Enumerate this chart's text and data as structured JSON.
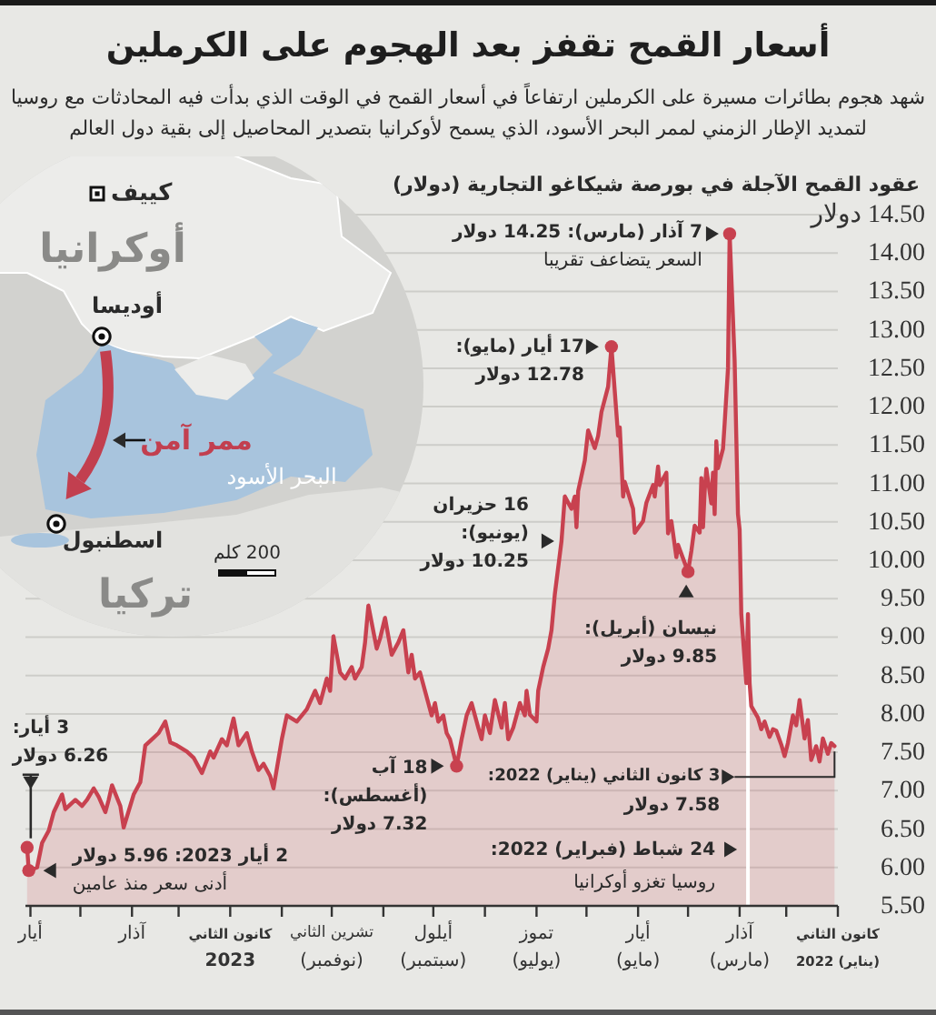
{
  "chart_data": {
    "type": "area",
    "title": "أسعار القمح تقفز بعد الهجوم على الكرملين",
    "subtitle": "شهد هجوم بطائرات مسيرة على الكرملين ارتفاعاً في أسعار القمح في الوقت الذي بدأت فيه المحادثات مع روسيا لتمديد الإطار الزمني لممر البحر الأسود، الذي يسمح لأوكرانيا بتصدير المحاصيل إلى بقية دول العالم",
    "ylabel": "عقود القمح الآجلة في بورصة شيكاغو التجارية (دولار)",
    "color": "#c8414f",
    "x": [
      "2022-01-03",
      "2022-01-05",
      "2022-01-07",
      "2022-01-10",
      "2022-01-12",
      "2022-01-14",
      "2022-01-17",
      "2022-01-19",
      "2022-01-21",
      "2022-01-24",
      "2022-01-26",
      "2022-01-28",
      "2022-01-31",
      "2022-02-02",
      "2022-02-04",
      "2022-02-07",
      "2022-02-09",
      "2022-02-11",
      "2022-02-14",
      "2022-02-16",
      "2022-02-18",
      "2022-02-22",
      "2022-02-23",
      "2022-02-24",
      "2022-02-25",
      "2022-02-28",
      "2022-03-01",
      "2022-03-02",
      "2022-03-03",
      "2022-03-04",
      "2022-03-07",
      "2022-03-08",
      "2022-03-10",
      "2022-03-11",
      "2022-03-14",
      "2022-03-15",
      "2022-03-16",
      "2022-03-17",
      "2022-03-18",
      "2022-03-21",
      "2022-03-22",
      "2022-03-23",
      "2022-03-24",
      "2022-03-25",
      "2022-03-28",
      "2022-03-30",
      "2022-04-01",
      "2022-04-07",
      "2022-04-08",
      "2022-04-11",
      "2022-04-13",
      "2022-04-14",
      "2022-04-18",
      "2022-04-19",
      "2022-04-21",
      "2022-04-22",
      "2022-04-26",
      "2022-04-28",
      "2022-05-03",
      "2022-05-04",
      "2022-05-09",
      "2022-05-10",
      "2022-05-12",
      "2022-05-13",
      "2022-05-17",
      "2022-05-19",
      "2022-05-23",
      "2022-05-25",
      "2022-05-27",
      "2022-05-31",
      "2022-06-02",
      "2022-06-06",
      "2022-06-07",
      "2022-06-08",
      "2022-06-10",
      "2022-06-14",
      "2022-06-16",
      "2022-06-20",
      "2022-06-22",
      "2022-06-24",
      "2022-06-27",
      "2022-06-30",
      "2022-07-01",
      "2022-07-05",
      "2022-07-07",
      "2022-07-08",
      "2022-07-11",
      "2022-07-15",
      "2022-07-18",
      "2022-07-20",
      "2022-07-22",
      "2022-07-26",
      "2022-07-29",
      "2022-08-01",
      "2022-08-03",
      "2022-08-05",
      "2022-08-09",
      "2022-08-12",
      "2022-08-15",
      "2022-08-18",
      "2022-08-22",
      "2022-08-24",
      "2022-08-26",
      "2022-08-29",
      "2022-08-31",
      "2022-09-02",
      "2022-09-06",
      "2022-09-09",
      "2022-09-12",
      "2022-09-14",
      "2022-09-16",
      "2022-09-19",
      "2022-09-22",
      "2022-09-26",
      "2022-09-28",
      "2022-09-30",
      "2022-10-03",
      "2022-10-05",
      "2022-10-10",
      "2022-10-12",
      "2022-10-14",
      "2022-10-18",
      "2022-10-20",
      "2022-10-24",
      "2022-10-27",
      "2022-10-31",
      "2022-11-02",
      "2022-11-04",
      "2022-11-08",
      "2022-11-11",
      "2022-11-16",
      "2022-11-22",
      "2022-11-28",
      "2022-12-01",
      "2022-12-06",
      "2022-12-08",
      "2022-12-12",
      "2022-12-15",
      "2022-12-19",
      "2022-12-22",
      "2022-12-27",
      "2022-12-30",
      "2023-01-03",
      "2023-01-06",
      "2023-01-11",
      "2023-01-13",
      "2023-01-18",
      "2023-01-23",
      "2023-01-27",
      "2023-02-02",
      "2023-02-06",
      "2023-02-09",
      "2023-02-13",
      "2023-02-17",
      "2023-02-21",
      "2023-02-24",
      "2023-02-28",
      "2023-03-06",
      "2023-03-08",
      "2023-03-13",
      "2023-03-15",
      "2023-03-17",
      "2023-03-21",
      "2023-03-24",
      "2023-03-28",
      "2023-03-31",
      "2023-04-04",
      "2023-04-10",
      "2023-04-12",
      "2023-04-17",
      "2023-04-20",
      "2023-04-24",
      "2023-04-27",
      "2023-05-02",
      "2023-05-03"
    ],
    "values": [
      7.58,
      7.62,
      7.48,
      7.68,
      7.38,
      7.58,
      7.4,
      7.92,
      7.68,
      8.18,
      7.85,
      7.98,
      7.62,
      7.45,
      7.6,
      7.78,
      7.8,
      7.7,
      7.9,
      7.8,
      7.95,
      8.1,
      8.4,
      9.3,
      8.4,
      9.3,
      10.4,
      10.6,
      11.6,
      12.6,
      14.25,
      12.5,
      11.78,
      11.45,
      11.2,
      11.55,
      10.6,
      11.14,
      10.74,
      11.19,
      10.9,
      10.43,
      11.07,
      10.36,
      10.45,
      10.12,
      9.85,
      10.2,
      10.04,
      10.51,
      10.35,
      11.14,
      10.98,
      11.22,
      10.83,
      10.98,
      10.75,
      10.51,
      10.36,
      10.67,
      11.02,
      10.83,
      11.73,
      11.62,
      12.78,
      12.26,
      11.93,
      11.62,
      11.46,
      11.69,
      11.3,
      10.9,
      10.43,
      10.83,
      10.67,
      10.83,
      10.25,
      9.56,
      9.09,
      8.85,
      8.61,
      8.3,
      7.9,
      7.99,
      8.3,
      7.98,
      8.14,
      7.82,
      7.67,
      8.14,
      7.82,
      8.18,
      7.75,
      7.98,
      7.67,
      7.82,
      8.14,
      7.98,
      7.67,
      7.32,
      7.67,
      7.75,
      7.98,
      7.9,
      8.14,
      7.98,
      8.3,
      8.54,
      8.46,
      8.77,
      8.54,
      9.09,
      8.93,
      8.77,
      9.01,
      9.25,
      8.98,
      8.85,
      9.41,
      8.93,
      8.61,
      8.46,
      8.61,
      8.46,
      8.54,
      9.01,
      8.3,
      8.46,
      8.14,
      8.3,
      8.06,
      7.9,
      7.98,
      7.67,
      7.03,
      7.19,
      7.35,
      7.27,
      7.51,
      7.75,
      7.59,
      7.94,
      7.59,
      7.67,
      7.43,
      7.51,
      7.23,
      7.43,
      7.51,
      7.59,
      7.63,
      7.9,
      7.75,
      7.67,
      7.59,
      7.11,
      6.95,
      6.52,
      6.8,
      7.07,
      6.88,
      6.72,
      6.92,
      7.03,
      6.88,
      6.8,
      6.88,
      6.76,
      6.95,
      6.72,
      6.48,
      6.32,
      6.0,
      5.96,
      6.26
    ],
    "xlim": [
      "2023-05-04",
      "2022-01-01"
    ],
    "xticks": [
      {
        "value": "2022-01-01",
        "label": "كانون الثاني\n(يناير) 2022"
      },
      {
        "value": "2022-02-01",
        "label": null
      },
      {
        "value": "2022-03-01",
        "label": "آذار\n(مارس)"
      },
      {
        "value": "2022-04-01",
        "label": null
      },
      {
        "value": "2022-05-01",
        "label": "أيار\n(مايو)"
      },
      {
        "value": "2022-06-01",
        "label": null
      },
      {
        "value": "2022-07-01",
        "label": "تموز\n(يوليو)"
      },
      {
        "value": "2022-08-01",
        "label": null
      },
      {
        "value": "2022-09-01",
        "label": "أيلول\n(سبتمبر)"
      },
      {
        "value": "2022-10-01",
        "label": null
      },
      {
        "value": "2022-11-01",
        "label": "تشرين الثاني\n(نوفمبر)"
      },
      {
        "value": "2022-12-01",
        "label": null
      },
      {
        "value": "2023-01-01",
        "label": "كانون الثاني\n2023"
      },
      {
        "value": "2023-02-01",
        "label": null
      },
      {
        "value": "2023-03-01",
        "label": "آذار"
      },
      {
        "value": "2023-04-01",
        "label": null
      },
      {
        "value": "2023-05-01",
        "label": "أيار"
      }
    ],
    "ylim": [
      5.5,
      14.5
    ],
    "yticks": [
      {
        "value": 5.5,
        "label": "5.50"
      },
      {
        "value": 6,
        "label": "6.00"
      },
      {
        "value": 6.5,
        "label": "6.50"
      },
      {
        "value": 7,
        "label": "7.00"
      },
      {
        "value": 7.5,
        "label": "7.50"
      },
      {
        "value": 8,
        "label": "8.00"
      },
      {
        "value": 8.5,
        "label": "8.50"
      },
      {
        "value": 9,
        "label": "9.00"
      },
      {
        "value": 9.5,
        "label": "9.50"
      },
      {
        "value": 10,
        "label": "10.00"
      },
      {
        "value": 10.5,
        "label": "10.50"
      },
      {
        "value": 11,
        "label": "11.00"
      },
      {
        "value": 11.5,
        "label": "11.50"
      },
      {
        "value": 12,
        "label": "12.00"
      },
      {
        "value": 12.5,
        "label": "12.50"
      },
      {
        "value": 13,
        "label": "13.00"
      },
      {
        "value": 13.5,
        "label": "13.50"
      },
      {
        "value": 14,
        "label": "14.00"
      },
      {
        "value": 14.5,
        "label": "14.50 دولار"
      }
    ],
    "grid": "y",
    "ref_lines": [
      {
        "axis": "x",
        "value": "2022-02-24",
        "label": "24 شباط (فبراير) 2022:\nروسيا تغزو أوكرانيا",
        "color": "#ffffff"
      }
    ],
    "annotations": [
      {
        "text": "7 آذار (مارس): 14.25 دولار\nالسعر يتضاعف تقريبا",
        "x": "2022-03-07",
        "y": 14.25
      },
      {
        "text": "17 أيار (مايو):\n12.78 دولار",
        "x": "2022-05-17",
        "y": 12.78
      },
      {
        "text": "16 حزيران\n(يونيو):\n10.25 دولار",
        "x": "2022-06-16",
        "y": 10.25
      },
      {
        "text": "نيسان (أبريل):\n9.85 دولار",
        "x": "2022-04-01",
        "y": 9.85
      },
      {
        "text": "18 آب\n(أغسطس):\n7.32 دولار",
        "x": "2022-08-18",
        "y": 7.32
      },
      {
        "text": "3 كانون الثاني (يناير) 2022:\n7.58 دولار",
        "x": "2022-01-03",
        "y": 7.58
      },
      {
        "text": "3 أيار:\n6.26 دولار",
        "x": "2023-05-03",
        "y": 6.26
      },
      {
        "text": "2 أيار 2023: 5.96 دولار\nأدنى سعر منذ عامين",
        "x": "2023-05-02",
        "y": 5.96
      },
      "كييف",
      "أوكرانيا",
      "أوديسا",
      "ممر آمن",
      "البحر الأسود",
      "اسطنبول",
      "200 كلم",
      "تركيا"
    ]
  }
}
